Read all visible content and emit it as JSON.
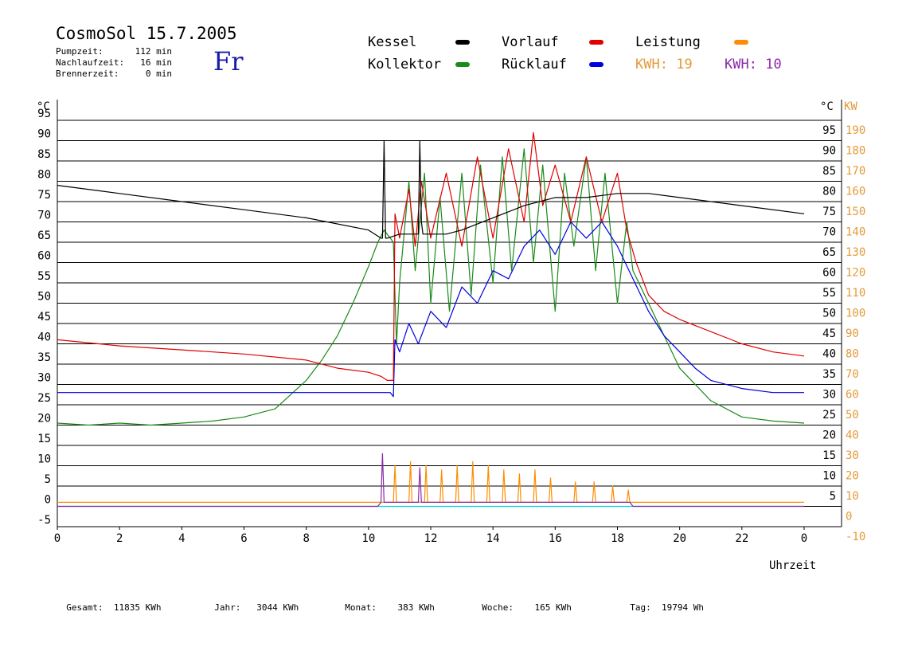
{
  "header": {
    "title": "CosmoSol 15.7.2005",
    "weekday": "Fr",
    "info": [
      {
        "label": "Pumpzeit:",
        "value": "112 min"
      },
      {
        "label": "Nachlaufzeit:",
        "value": "16 min"
      },
      {
        "label": "Brennerzeit:",
        "value": "0 min"
      }
    ]
  },
  "legend": {
    "items": [
      {
        "label": "Kessel",
        "color": "#000000"
      },
      {
        "label": "Kollektor",
        "color": "#1a8a1a"
      },
      {
        "label": "Vorlauf",
        "color": "#e00000"
      },
      {
        "label": "Rücklauf",
        "color": "#0000e0"
      },
      {
        "label": "Leistung",
        "color": "#ff8c00"
      }
    ],
    "kwh": [
      {
        "label": "KWH:",
        "value": "19",
        "color": "#e39a3a"
      },
      {
        "label": "KWH:",
        "value": "10",
        "color": "#8a2aa8"
      }
    ]
  },
  "footer": [
    {
      "label": "Gesamt:",
      "value": "11835 KWh"
    },
    {
      "label": "Jahr:",
      "value": "3044 KWh"
    },
    {
      "label": "Monat:",
      "value": "383 KWh"
    },
    {
      "label": "Woche:",
      "value": "165 KWh"
    },
    {
      "label": "Tag:",
      "value": "19794 Wh"
    }
  ],
  "chart_data": {
    "type": "line",
    "xlabel": "Uhrzeit",
    "ylabel_left": "°C",
    "ylabel_right": "KW",
    "xlim": [
      0,
      24
    ],
    "ylim_left": [
      -5,
      100
    ],
    "ylim_right": [
      -10,
      200
    ],
    "grid": true,
    "x_ticks": [
      "0",
      "2",
      "4",
      "6",
      "8",
      "10",
      "12",
      "14",
      "16",
      "18",
      "20",
      "22",
      "0"
    ],
    "left_ticks": [
      95,
      90,
      85,
      80,
      75,
      70,
      65,
      60,
      55,
      50,
      45,
      40,
      35,
      30,
      25,
      20,
      15,
      10,
      5,
      0,
      -5
    ],
    "right_ticks_temp": [
      95,
      90,
      85,
      80,
      75,
      70,
      65,
      60,
      55,
      50,
      45,
      40,
      35,
      30,
      25,
      20,
      15,
      10,
      5
    ],
    "right_ticks_kw": [
      190,
      180,
      170,
      160,
      150,
      140,
      130,
      120,
      110,
      100,
      90,
      80,
      70,
      60,
      50,
      40,
      30,
      20,
      10,
      0,
      -10
    ],
    "series": [
      {
        "key": "kessel",
        "color": "#000000",
        "x": [
          0,
          2,
          4,
          6,
          8,
          10,
          10.4,
          10.45,
          10.5,
          10.55,
          10.6,
          11,
          11.5,
          11.6,
          11.65,
          11.7,
          11.75,
          12,
          12.5,
          13,
          14,
          15,
          16,
          17,
          18,
          18.5,
          19,
          20,
          22,
          24
        ],
        "y": [
          79,
          77,
          75,
          73,
          71,
          68,
          66,
          66,
          90,
          66,
          66,
          67,
          67,
          67,
          90,
          70,
          67,
          67,
          67,
          68,
          71,
          74,
          76,
          76,
          77,
          77,
          77,
          76,
          74,
          72
        ]
      },
      {
        "key": "vorlauf",
        "color": "#e00000",
        "x": [
          0,
          2,
          4,
          6,
          8,
          9,
          10,
          10.4,
          10.6,
          10.8,
          10.85,
          11,
          11.3,
          11.5,
          11.7,
          12,
          12.5,
          13,
          13.5,
          14,
          14.5,
          15,
          15.3,
          15.6,
          16,
          16.5,
          17,
          17.5,
          18,
          18.3,
          18.6,
          19,
          19.5,
          20,
          21,
          22,
          23,
          24
        ],
        "y": [
          41,
          39.5,
          38.5,
          37.5,
          36,
          34,
          33,
          32,
          31,
          31,
          72,
          66,
          78,
          64,
          80,
          66,
          82,
          64,
          86,
          66,
          88,
          70,
          92,
          74,
          84,
          70,
          86,
          70,
          82,
          68,
          60,
          52,
          48,
          46,
          43,
          40,
          38,
          37
        ]
      },
      {
        "key": "ruecklauf",
        "color": "#0000e0",
        "x": [
          0,
          2,
          4,
          6,
          8,
          10,
          10.7,
          10.8,
          10.85,
          11,
          11.3,
          11.6,
          12,
          12.5,
          13,
          13.5,
          14,
          14.5,
          15,
          15.5,
          16,
          16.5,
          17,
          17.5,
          18,
          18.5,
          19,
          19.5,
          20,
          20.5,
          21,
          22,
          23,
          24
        ],
        "y": [
          28,
          28,
          28,
          28,
          28,
          28,
          28,
          27,
          41,
          38,
          45,
          40,
          48,
          44,
          54,
          50,
          58,
          56,
          64,
          68,
          62,
          70,
          66,
          70,
          64,
          56,
          48,
          42,
          38,
          34,
          31,
          29,
          28,
          28
        ]
      },
      {
        "key": "kollektor",
        "color": "#1a8a1a",
        "x": [
          0,
          1,
          2,
          3,
          4,
          5,
          6,
          7,
          8,
          8.5,
          9,
          9.5,
          10,
          10.3,
          10.5,
          10.8,
          10.9,
          11,
          11.3,
          11.5,
          11.8,
          12,
          12.3,
          12.6,
          13,
          13.3,
          13.6,
          14,
          14.3,
          14.6,
          15,
          15.3,
          15.6,
          16,
          16.3,
          16.6,
          17,
          17.3,
          17.6,
          18,
          18.3,
          18.5,
          19,
          19.5,
          20,
          21,
          22,
          23,
          24
        ],
        "y": [
          20.5,
          20,
          20.5,
          20,
          20.5,
          21,
          22,
          24,
          31,
          36,
          42,
          50,
          59,
          65,
          68,
          65,
          40,
          55,
          80,
          58,
          82,
          50,
          76,
          48,
          82,
          52,
          84,
          55,
          86,
          58,
          88,
          60,
          84,
          48,
          82,
          64,
          86,
          58,
          82,
          50,
          70,
          58,
          50,
          42,
          34,
          26,
          22,
          21,
          20.5
        ]
      },
      {
        "key": "leistung",
        "color": "#ff8c00",
        "x": [
          0,
          10.8,
          10.85,
          10.9,
          11.3,
          11.35,
          11.4,
          11.8,
          11.85,
          11.9,
          12.3,
          12.35,
          12.4,
          12.8,
          12.85,
          12.9,
          13.3,
          13.35,
          13.4,
          13.8,
          13.85,
          13.9,
          14.3,
          14.35,
          14.4,
          14.8,
          14.85,
          14.9,
          15.3,
          15.35,
          15.4,
          15.8,
          15.85,
          15.9,
          16.6,
          16.65,
          16.7,
          17.2,
          17.25,
          17.3,
          17.8,
          17.85,
          17.9,
          18.3,
          18.35,
          18.4,
          24
        ],
        "y": [
          2,
          2,
          20,
          2,
          2,
          22,
          2,
          2,
          20,
          2,
          2,
          18,
          2,
          2,
          20,
          2,
          2,
          22,
          2,
          2,
          20,
          2,
          2,
          18,
          2,
          2,
          16,
          2,
          2,
          18,
          2,
          2,
          14,
          2,
          2,
          12,
          2,
          2,
          12,
          2,
          2,
          10,
          2,
          2,
          8,
          2,
          2
        ]
      },
      {
        "key": "leistung2",
        "color": "#8a2aa8",
        "x": [
          0,
          10.3,
          10.4,
          10.45,
          10.5,
          11,
          11.6,
          11.65,
          11.7,
          12,
          12.5,
          13,
          14,
          15,
          16,
          17,
          18,
          18.4,
          18.5,
          24
        ],
        "y": [
          0,
          0,
          2,
          26,
          2,
          2,
          2,
          19,
          2,
          2,
          2,
          2,
          2,
          2,
          2,
          2,
          2,
          2,
          0,
          0
        ]
      },
      {
        "key": "baseline",
        "color": "#00d8d8",
        "x": [
          0,
          24
        ],
        "y": [
          0,
          0
        ]
      }
    ]
  }
}
